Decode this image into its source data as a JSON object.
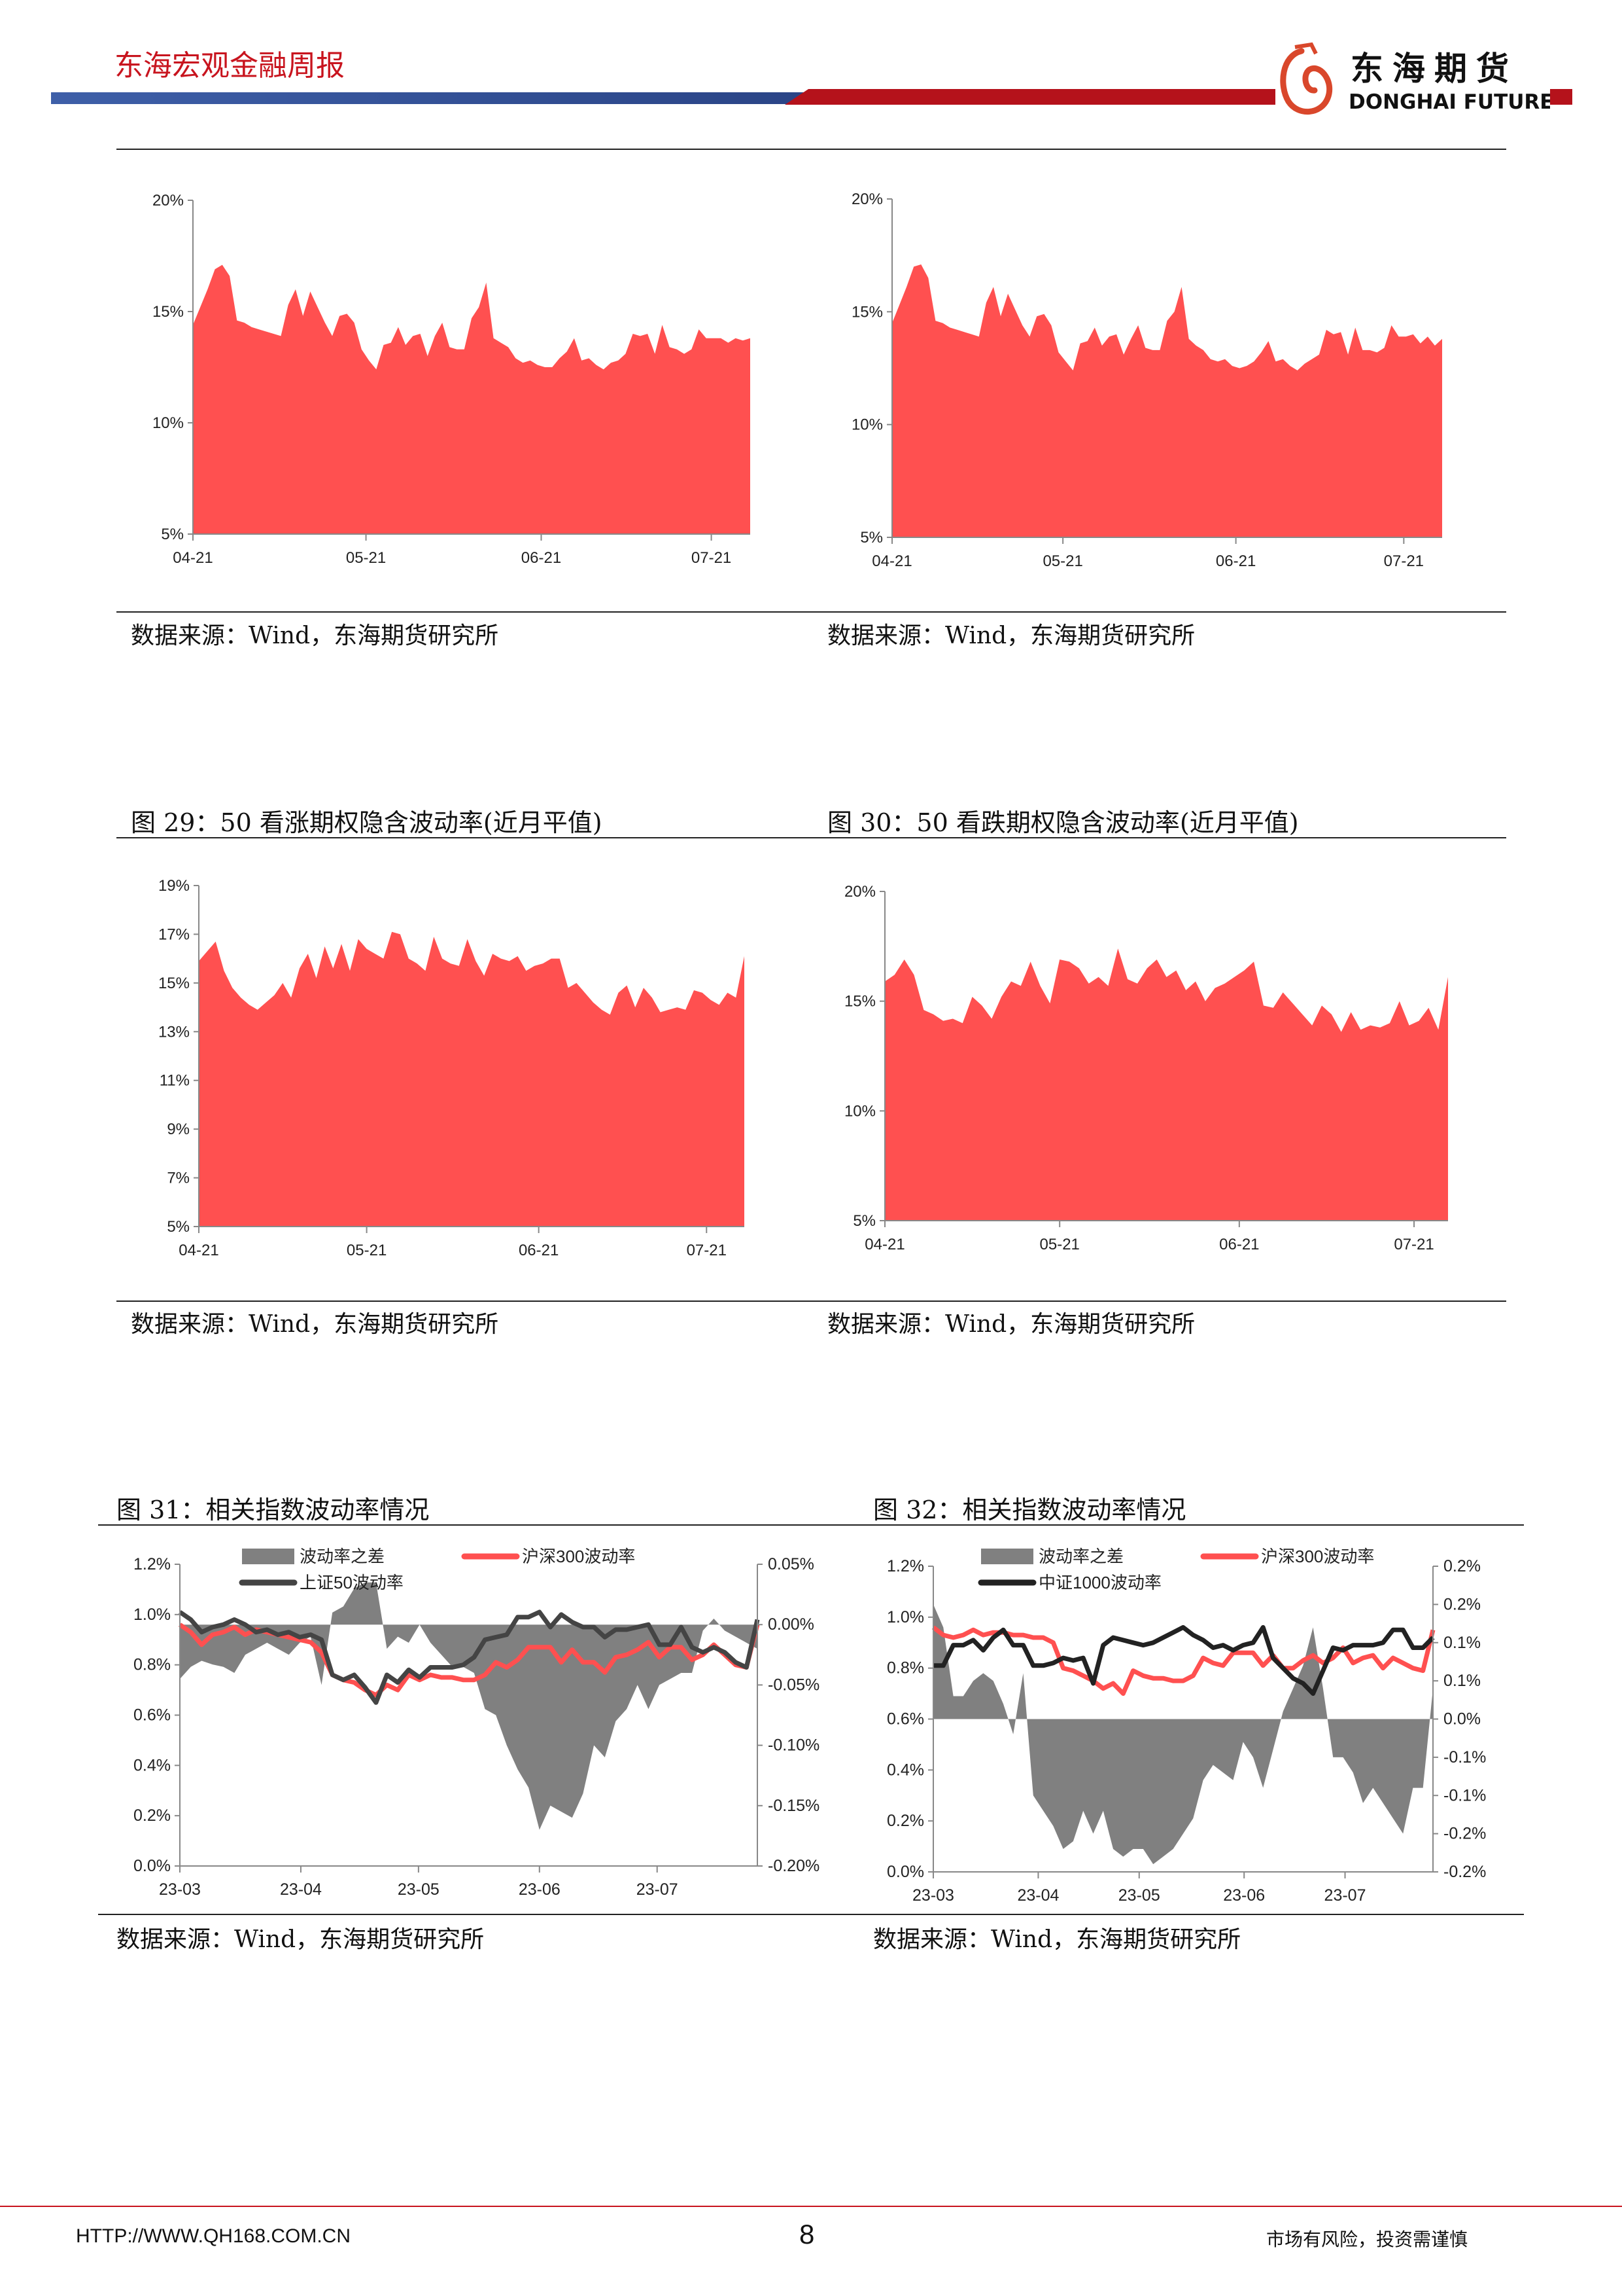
{
  "header": {
    "title": "东海宏观金融周报"
  },
  "logo": {
    "cn": "东海期货",
    "en": "DONGHAI FUTURES"
  },
  "captions": {
    "fig29": "图 29：50 看涨期权隐含波动率(近月平值)",
    "fig30": "图 30：50 看跌期权隐含波动率(近月平值)",
    "fig31": "图 31：相关指数波动率情况",
    "fig32": "图 32：相关指数波动率情况"
  },
  "source": "数据来源：Wind，东海期货研究所",
  "footer": {
    "url": "HTTP://WWW.QH168.COM.CN",
    "page": "8",
    "disclaimer": "市场有风险，投资需谨慎"
  },
  "colors": {
    "red": "#ff5050",
    "gray": "#808080",
    "dark": "#333333",
    "brand_red": "#c8141e",
    "brand_blue": "#2e4a8c"
  },
  "chart_data": [
    {
      "id": "top-left",
      "type": "area",
      "title": "",
      "y_ticks": [
        5,
        10,
        15,
        20
      ],
      "y_tick_labels": [
        "5%",
        "10%",
        "15%",
        "20%"
      ],
      "ylim": [
        5,
        20
      ],
      "x_ticks": [
        {
          "label": "04-21",
          "index": 0
        },
        {
          "label": "05-21",
          "index": 23.6
        },
        {
          "label": "06-21",
          "index": 47.5
        },
        {
          "label": "07-21",
          "index": 70.7
        }
      ],
      "series": [
        {
          "name": "隐含波动率",
          "axis": "left",
          "kind": "area",
          "color": "#ff5050",
          "values": [
            14.4,
            15.2,
            16,
            16.9,
            17.1,
            16.6,
            14.6,
            14.5,
            14.3,
            14.2,
            14.1,
            14.0,
            13.9,
            15.3,
            16,
            14.8,
            15.9,
            15.2,
            14.5,
            13.9,
            14.8,
            14.9,
            14.5,
            13.3,
            12.8,
            12.4,
            13.5,
            13.6,
            14.3,
            13.5,
            13.9,
            14.0,
            13.0,
            13.9,
            14.5,
            13.4,
            13.3,
            13.3,
            14.7,
            15.2,
            16.3,
            13.8,
            13.6,
            13.4,
            12.9,
            12.7,
            12.8,
            12.6,
            12.5,
            12.5,
            12.9,
            13.2,
            13.8,
            12.8,
            12.9,
            12.6,
            12.4,
            12.7,
            12.8,
            13.1,
            14.0,
            13.9,
            14.0,
            13.1,
            14.4,
            13.4,
            13.3,
            13.1,
            13.3,
            14.2,
            13.8,
            13.8,
            13.8,
            13.6,
            13.8,
            13.7,
            13.8
          ]
        }
      ]
    },
    {
      "id": "top-right",
      "type": "area",
      "title": "",
      "y_ticks": [
        5,
        10,
        15,
        20
      ],
      "y_tick_labels": [
        "5%",
        "10%",
        "15%",
        "20%"
      ],
      "ylim": [
        5,
        20
      ],
      "x_ticks": [
        {
          "label": "04-21",
          "index": 0
        },
        {
          "label": "05-21",
          "index": 23.6
        },
        {
          "label": "06-21",
          "index": 47.5
        },
        {
          "label": "07-21",
          "index": 70.7
        }
      ],
      "series": [
        {
          "name": "隐含波动率",
          "axis": "left",
          "kind": "area",
          "color": "#ff5050",
          "values": [
            14.5,
            15.3,
            16.1,
            17.0,
            17.1,
            16.5,
            14.6,
            14.5,
            14.3,
            14.2,
            14.1,
            14.0,
            13.9,
            15.4,
            16.1,
            14.8,
            15.8,
            15.1,
            14.4,
            13.9,
            14.8,
            14.9,
            14.4,
            13.2,
            12.8,
            12.4,
            13.6,
            13.7,
            14.3,
            13.5,
            13.9,
            14.0,
            13.1,
            13.8,
            14.4,
            13.4,
            13.3,
            13.3,
            14.6,
            15.0,
            16.1,
            13.8,
            13.5,
            13.3,
            12.9,
            12.8,
            12.9,
            12.6,
            12.5,
            12.6,
            12.8,
            13.2,
            13.7,
            12.8,
            12.9,
            12.6,
            12.4,
            12.7,
            12.9,
            13.1,
            14.2,
            14.0,
            14.1,
            13.1,
            14.3,
            13.3,
            13.3,
            13.2,
            13.4,
            14.4,
            13.9,
            13.9,
            14.0,
            13.6,
            13.9,
            13.5,
            13.8
          ]
        }
      ]
    },
    {
      "id": "fig29",
      "type": "area",
      "title": "50 看涨期权隐含波动率(近月平值)",
      "y_ticks": [
        5,
        7,
        9,
        11,
        13,
        15,
        17,
        19
      ],
      "y_tick_labels": [
        "5%",
        "7%",
        "9%",
        "11%",
        "13%",
        "15%",
        "17%",
        "19%"
      ],
      "ylim": [
        5,
        19
      ],
      "x_ticks": [
        {
          "label": "04-21",
          "index": 0
        },
        {
          "label": "05-21",
          "index": 20
        },
        {
          "label": "06-21",
          "index": 40.5
        },
        {
          "label": "07-21",
          "index": 60.5
        }
      ],
      "series": [
        {
          "name": "50 看涨期权隐含波动率",
          "axis": "left",
          "kind": "area",
          "color": "#ff5050",
          "values": [
            15.9,
            16.3,
            16.7,
            15.5,
            14.8,
            14.4,
            14.1,
            13.9,
            14.2,
            14.5,
            15.0,
            14.4,
            15.6,
            16.2,
            15.2,
            16.5,
            15.6,
            16.6,
            15.5,
            16.8,
            16.4,
            16.2,
            16.0,
            17.1,
            17.0,
            16.0,
            15.8,
            15.5,
            16.9,
            16.0,
            15.8,
            15.7,
            16.8,
            15.9,
            15.3,
            16.2,
            16.0,
            15.9,
            16.1,
            15.5,
            15.7,
            15.8,
            16.0,
            16.0,
            14.8,
            15.0,
            14.6,
            14.2,
            13.9,
            13.7,
            14.6,
            14.9,
            14.0,
            14.8,
            14.4,
            13.8,
            13.9,
            14.0,
            13.9,
            14.7,
            14.6,
            14.3,
            14.1,
            14.6,
            14.4,
            16.1
          ]
        }
      ]
    },
    {
      "id": "fig30",
      "type": "area",
      "title": "50 看跌期权隐含波动率(近月平值)",
      "y_ticks": [
        5,
        10,
        15,
        20
      ],
      "y_tick_labels": [
        "5%",
        "10%",
        "15%",
        "20%"
      ],
      "ylim": [
        5,
        20
      ],
      "x_ticks": [
        {
          "label": "04-21",
          "index": 0
        },
        {
          "label": "05-21",
          "index": 18
        },
        {
          "label": "06-21",
          "index": 36.5
        },
        {
          "label": "07-21",
          "index": 54.5
        }
      ],
      "series": [
        {
          "name": "50 看跌期权隐含波动率",
          "axis": "left",
          "kind": "area",
          "color": "#ff5050",
          "values": [
            15.9,
            16.2,
            16.9,
            16.2,
            14.6,
            14.4,
            14.1,
            14.2,
            14.0,
            15.2,
            14.8,
            14.2,
            15.2,
            15.9,
            15.7,
            16.8,
            15.7,
            14.9,
            16.9,
            16.8,
            16.5,
            15.8,
            16.1,
            15.7,
            17.4,
            16.0,
            15.8,
            16.5,
            16.9,
            16.1,
            16.4,
            15.5,
            15.9,
            15.0,
            15.6,
            15.8,
            16.1,
            16.4,
            16.8,
            14.8,
            14.7,
            15.4,
            14.9,
            14.4,
            13.9,
            14.8,
            14.4,
            13.6,
            14.5,
            13.7,
            13.9,
            13.8,
            14.0,
            15.0,
            13.9,
            14.1,
            14.7,
            13.7,
            16.1
          ]
        }
      ]
    },
    {
      "id": "fig31",
      "type": "line",
      "title": "相关指数波动率情况",
      "y_ticks": [
        0,
        0.2,
        0.4,
        0.6,
        0.8,
        1.0,
        1.2
      ],
      "y_tick_labels": [
        "0.0%",
        "0.2%",
        "0.4%",
        "0.6%",
        "0.8%",
        "1.0%",
        "1.2%"
      ],
      "ylim": [
        0,
        1.2
      ],
      "y2_ticks": [
        -0.2,
        -0.15,
        -0.1,
        -0.05,
        0,
        0.05
      ],
      "y2_tick_labels": [
        "-0.20%",
        "-0.15%",
        "-0.10%",
        "-0.05%",
        "0.00%",
        "0.05%"
      ],
      "y2lim": [
        -0.2,
        0.05
      ],
      "x_ticks": [
        {
          "label": "23-03",
          "index": 0
        },
        {
          "label": "23-04",
          "index": 11.1
        },
        {
          "label": "23-05",
          "index": 21.9
        },
        {
          "label": "23-06",
          "index": 33
        },
        {
          "label": "23-07",
          "index": 43.8
        }
      ],
      "series": [
        {
          "name": "波动率之差",
          "axis": "right",
          "kind": "area",
          "color": "#808080",
          "values": [
            -0.045,
            -0.035,
            -0.03,
            -0.033,
            -0.035,
            -0.04,
            -0.025,
            -0.02,
            -0.015,
            -0.02,
            -0.025,
            -0.015,
            -0.01,
            -0.05,
            0.01,
            0.015,
            0.03,
            0.035,
            0.035,
            -0.02,
            -0.01,
            -0.015,
            0,
            -0.015,
            -0.025,
            -0.035,
            -0.035,
            -0.04,
            -0.07,
            -0.075,
            -0.1,
            -0.12,
            -0.135,
            -0.17,
            -0.15,
            -0.155,
            -0.16,
            -0.14,
            -0.1,
            -0.11,
            -0.08,
            -0.07,
            -0.05,
            -0.07,
            -0.05,
            -0.045,
            -0.04,
            -0.04,
            -0.005,
            0.005,
            -0.005,
            -0.01,
            -0.015,
            -0.02
          ]
        },
        {
          "name": "沪深300波动率",
          "axis": "left",
          "kind": "line",
          "color": "#ff5050",
          "values": [
            0.96,
            0.93,
            0.88,
            0.92,
            0.93,
            0.95,
            0.92,
            0.94,
            0.93,
            0.92,
            0.91,
            0.9,
            0.89,
            0.85,
            0.76,
            0.74,
            0.73,
            0.7,
            0.68,
            0.72,
            0.7,
            0.76,
            0.74,
            0.76,
            0.75,
            0.75,
            0.74,
            0.74,
            0.76,
            0.81,
            0.79,
            0.82,
            0.87,
            0.87,
            0.87,
            0.81,
            0.86,
            0.81,
            0.81,
            0.77,
            0.83,
            0.84,
            0.86,
            0.89,
            0.83,
            0.87,
            0.87,
            0.82,
            0.84,
            0.88,
            0.84,
            0.8,
            0.79,
            0.96
          ]
        },
        {
          "name": "上证50波动率",
          "axis": "left",
          "kind": "line",
          "color": "#444444",
          "values": [
            1.01,
            0.98,
            0.93,
            0.95,
            0.96,
            0.98,
            0.96,
            0.93,
            0.94,
            0.92,
            0.93,
            0.91,
            0.92,
            0.9,
            0.76,
            0.74,
            0.76,
            0.71,
            0.65,
            0.76,
            0.73,
            0.78,
            0.75,
            0.79,
            0.79,
            0.79,
            0.8,
            0.83,
            0.9,
            0.91,
            0.92,
            0.99,
            0.99,
            1.01,
            0.95,
            1.0,
            0.97,
            0.95,
            0.95,
            0.91,
            0.94,
            0.94,
            0.95,
            0.96,
            0.88,
            0.88,
            0.95,
            0.87,
            0.85,
            0.87,
            0.85,
            0.81,
            0.79,
            0.98
          ]
        }
      ]
    },
    {
      "id": "fig32",
      "type": "line",
      "title": "相关指数波动率情况",
      "y_ticks": [
        0,
        0.2,
        0.4,
        0.6,
        0.8,
        1.0,
        1.2
      ],
      "y_tick_labels": [
        "0.0%",
        "0.2%",
        "0.4%",
        "0.6%",
        "0.8%",
        "1.0%",
        "1.2%"
      ],
      "ylim": [
        0,
        1.2
      ],
      "y2_ticks": [
        -0.2,
        -0.15,
        -0.1,
        -0.05,
        0,
        0.05,
        0.1,
        0.15,
        0.2
      ],
      "y2_tick_labels": [
        "-0.2%",
        "-0.2%",
        "-0.1%",
        "-0.1%",
        "0.0%",
        "0.1%",
        "0.1%",
        "0.2%",
        "0.2%"
      ],
      "y2lim": [
        -0.2,
        0.2
      ],
      "x_ticks": [
        {
          "label": "23-03",
          "index": 0
        },
        {
          "label": "23-04",
          "index": 10.5
        },
        {
          "label": "23-05",
          "index": 20.6
        },
        {
          "label": "23-06",
          "index": 31.1
        },
        {
          "label": "23-07",
          "index": 41.2
        }
      ],
      "series": [
        {
          "name": "波动率之差",
          "axis": "right",
          "kind": "area",
          "color": "#808080",
          "values": [
            0.15,
            0.12,
            0.03,
            0.03,
            0.05,
            0.06,
            0.05,
            0.02,
            -0.02,
            0.06,
            -0.1,
            -0.12,
            -0.14,
            -0.17,
            -0.16,
            -0.12,
            -0.15,
            -0.12,
            -0.17,
            -0.18,
            -0.17,
            -0.17,
            -0.19,
            -0.18,
            -0.17,
            -0.15,
            -0.13,
            -0.08,
            -0.06,
            -0.07,
            -0.08,
            -0.03,
            -0.05,
            -0.09,
            -0.04,
            0.01,
            0.04,
            0.07,
            0.12,
            0.04,
            -0.05,
            -0.05,
            -0.07,
            -0.11,
            -0.09,
            -0.11,
            -0.13,
            -0.15,
            -0.09,
            -0.09,
            0.04
          ]
        },
        {
          "name": "沪深300波动率",
          "axis": "left",
          "kind": "line",
          "color": "#ff5050",
          "values": [
            0.96,
            0.93,
            0.92,
            0.93,
            0.95,
            0.93,
            0.94,
            0.94,
            0.93,
            0.93,
            0.92,
            0.92,
            0.9,
            0.8,
            0.79,
            0.77,
            0.75,
            0.72,
            0.74,
            0.7,
            0.79,
            0.77,
            0.76,
            0.76,
            0.75,
            0.75,
            0.77,
            0.84,
            0.82,
            0.81,
            0.86,
            0.86,
            0.86,
            0.81,
            0.85,
            0.8,
            0.8,
            0.83,
            0.85,
            0.82,
            0.84,
            0.88,
            0.82,
            0.84,
            0.85,
            0.8,
            0.84,
            0.82,
            0.8,
            0.79,
            0.95
          ]
        },
        {
          "name": "中证1000波动率",
          "axis": "left",
          "kind": "line",
          "color": "#222222",
          "values": [
            0.81,
            0.81,
            0.89,
            0.89,
            0.91,
            0.87,
            0.92,
            0.95,
            0.89,
            0.89,
            0.81,
            0.81,
            0.82,
            0.84,
            0.83,
            0.84,
            0.74,
            0.89,
            0.92,
            0.91,
            0.9,
            0.89,
            0.9,
            0.92,
            0.94,
            0.96,
            0.93,
            0.91,
            0.88,
            0.89,
            0.87,
            0.89,
            0.9,
            0.96,
            0.84,
            0.8,
            0.76,
            0.74,
            0.7,
            0.79,
            0.88,
            0.87,
            0.89,
            0.89,
            0.89,
            0.9,
            0.95,
            0.95,
            0.88,
            0.88,
            0.92
          ]
        }
      ]
    }
  ]
}
